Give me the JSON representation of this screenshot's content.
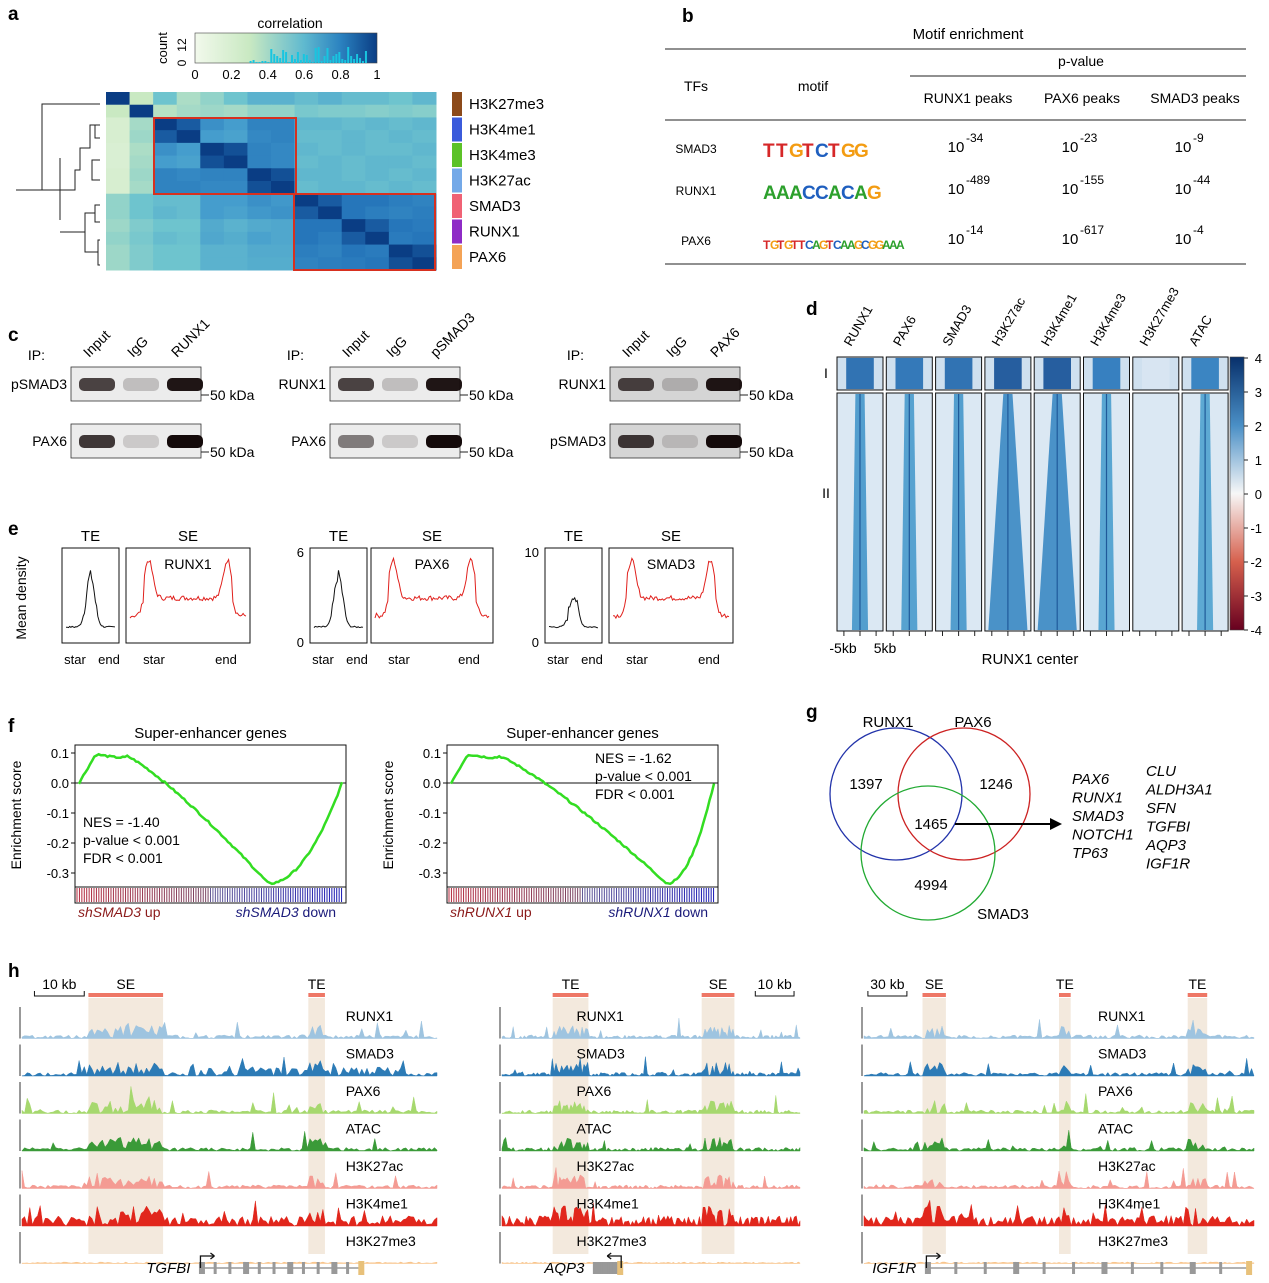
{
  "panel_labels": [
    "a",
    "b",
    "c",
    "d",
    "e",
    "f",
    "g",
    "h"
  ],
  "a": {
    "colorbar_title": "correlation",
    "colorbar_ticks": [
      "0",
      "0.2",
      "0.4",
      "0.6",
      "0.8",
      "1"
    ],
    "count_label": "count",
    "count_ticks": [
      "0",
      "12"
    ],
    "labels": [
      "H3K27me3",
      "H3K4me1",
      "H3K4me3",
      "H3K27ac",
      "SMAD3",
      "RUNX1",
      "PAX6"
    ],
    "label_colors": [
      "#8c4a1a",
      "#3b5bdb",
      "#5cc228",
      "#74a9e8",
      "#f06275",
      "#8e2bc6",
      "#f4a356"
    ],
    "matrix": [
      [
        1.0,
        0.3,
        0.55,
        0.38,
        0.45,
        0.55,
        0.62,
        0.62,
        0.58,
        0.62,
        0.58,
        0.58,
        0.55,
        0.6
      ],
      [
        0.3,
        1.0,
        0.35,
        0.4,
        0.42,
        0.4,
        0.45,
        0.45,
        0.52,
        0.5,
        0.5,
        0.48,
        0.5,
        0.48
      ],
      [
        0.2,
        0.4,
        1.0,
        0.92,
        0.75,
        0.7,
        0.8,
        0.8,
        0.6,
        0.6,
        0.58,
        0.6,
        0.58,
        0.6
      ],
      [
        0.2,
        0.42,
        0.92,
        1.0,
        0.7,
        0.68,
        0.78,
        0.8,
        0.58,
        0.58,
        0.6,
        0.58,
        0.6,
        0.58
      ],
      [
        0.18,
        0.38,
        0.75,
        0.7,
        1.0,
        0.95,
        0.8,
        0.78,
        0.6,
        0.58,
        0.6,
        0.58,
        0.58,
        0.6
      ],
      [
        0.18,
        0.4,
        0.7,
        0.68,
        0.95,
        1.0,
        0.8,
        0.78,
        0.58,
        0.6,
        0.58,
        0.6,
        0.6,
        0.58
      ],
      [
        0.2,
        0.42,
        0.8,
        0.78,
        0.8,
        0.8,
        1.0,
        0.95,
        0.6,
        0.6,
        0.58,
        0.6,
        0.58,
        0.6
      ],
      [
        0.2,
        0.4,
        0.8,
        0.8,
        0.78,
        0.78,
        0.95,
        1.0,
        0.58,
        0.6,
        0.6,
        0.58,
        0.6,
        0.58
      ],
      [
        0.45,
        0.55,
        0.58,
        0.58,
        0.7,
        0.7,
        0.75,
        0.72,
        1.0,
        0.92,
        0.85,
        0.85,
        0.82,
        0.8
      ],
      [
        0.45,
        0.55,
        0.6,
        0.58,
        0.7,
        0.68,
        0.72,
        0.74,
        0.92,
        1.0,
        0.85,
        0.82,
        0.8,
        0.82
      ],
      [
        0.42,
        0.5,
        0.55,
        0.55,
        0.65,
        0.62,
        0.65,
        0.66,
        0.85,
        0.85,
        1.0,
        0.92,
        0.85,
        0.83
      ],
      [
        0.45,
        0.52,
        0.58,
        0.56,
        0.66,
        0.64,
        0.68,
        0.66,
        0.85,
        0.82,
        0.92,
        1.0,
        0.83,
        0.85
      ],
      [
        0.42,
        0.5,
        0.55,
        0.55,
        0.62,
        0.62,
        0.65,
        0.65,
        0.82,
        0.8,
        0.85,
        0.83,
        1.0,
        0.95
      ],
      [
        0.42,
        0.5,
        0.55,
        0.55,
        0.62,
        0.62,
        0.64,
        0.64,
        0.8,
        0.82,
        0.83,
        0.85,
        0.95,
        1.0
      ]
    ]
  },
  "b": {
    "title": "Motif enrichment",
    "group_header": "p-value",
    "col_tfs": "TFs",
    "col_motif": "motif",
    "columns": [
      "RUNX1 peaks",
      "PAX6 peaks",
      "SMAD3 peaks"
    ],
    "rows": [
      {
        "tf": "SMAD3",
        "motif": "TTGTCTGG",
        "exps": [
          "-34",
          "-23",
          "-9"
        ]
      },
      {
        "tf": "RUNX1",
        "motif": "AAACCACAG",
        "exps": [
          "-489",
          "-155",
          "-44"
        ]
      },
      {
        "tf": "PAX6",
        "motif": "TGTGTTCAGTCAAGCGGAAA",
        "exps": [
          "-14",
          "-617",
          "-4"
        ]
      }
    ],
    "base": "10"
  },
  "c": {
    "blots": [
      {
        "ip": "IP:",
        "lanes": [
          "Input",
          "IgG",
          "RUNX1"
        ],
        "rows": [
          "pSMAD3",
          "PAX6"
        ],
        "mw": [
          "50 kDa",
          "50 kDa"
        ]
      },
      {
        "ip": "IP:",
        "lanes": [
          "Input",
          "IgG",
          "pSMAD3"
        ],
        "rows": [
          "RUNX1",
          "PAX6"
        ],
        "mw": [
          "50 kDa",
          "50 kDa"
        ]
      },
      {
        "ip": "IP:",
        "lanes": [
          "Input",
          "IgG",
          "PAX6"
        ],
        "rows": [
          "RUNX1",
          "pSMAD3"
        ],
        "mw": [
          "50 kDa",
          "50 kDa"
        ]
      }
    ]
  },
  "d": {
    "columns": [
      "RUNX1",
      "PAX6",
      "SMAD3",
      "H3K27ac",
      "H3K4me1",
      "H3K4me3",
      "H3K27me3",
      "ATAC"
    ],
    "cluster_labels": [
      "I",
      "II"
    ],
    "x_left": "-5kb",
    "x_right": "5kb",
    "xlabel": "RUNX1 center",
    "colorbar_ticks": [
      "4",
      "3",
      "2",
      "1",
      "0",
      "-1",
      "-2",
      "-3",
      "-4"
    ],
    "intensity": [
      0.85,
      0.8,
      0.85,
      1.0,
      1.0,
      0.75,
      0.1,
      0.7
    ]
  },
  "e": {
    "ylabel": "Mean density",
    "te_label": "TE",
    "se_label": "SE",
    "ticks_te": [
      "star",
      "end"
    ],
    "ticks_se": [
      "star",
      "end"
    ],
    "groups": [
      {
        "factor": "RUNX1",
        "ymax": "",
        "ymin": ""
      },
      {
        "factor": "PAX6",
        "ymax": "6",
        "ymin": "0"
      },
      {
        "factor": "SMAD3",
        "ymax": "10",
        "ymin": "0"
      }
    ]
  },
  "f": {
    "title": "Super-enhancer genes",
    "ylabel": "Enrichment score",
    "plots": [
      {
        "nes": "NES = -1.40",
        "pval": "p-value < 0.001",
        "fdr": "FDR < 0.001",
        "up": "shSMAD3",
        "up_suffix": " up",
        "down": "shSMAD3",
        "down_suffix": " down",
        "yticks": [
          "0.1",
          "0.0",
          "-0.1",
          "-0.2",
          "-0.3"
        ]
      },
      {
        "nes": "NES = -1.62",
        "pval": "p-value < 0.001",
        "fdr": "FDR < 0.001",
        "up": "shRUNX1",
        "up_suffix": " up",
        "down": "shRUNX1",
        "down_suffix": " down",
        "yticks": [
          "0.1",
          "0.0",
          "-0.1",
          "-0.2",
          "-0.3"
        ]
      }
    ],
    "line_color": "#33dd22"
  },
  "g": {
    "sets": [
      "RUNX1",
      "PAX6",
      "SMAD3"
    ],
    "counts": {
      "runx1_only": "1397",
      "pax6_only": "1246",
      "smad3_only": "4994",
      "all_three": "1465"
    },
    "genes_col1": [
      "PAX6",
      "RUNX1",
      "SMAD3",
      "NOTCH1",
      "TP63"
    ],
    "genes_col2": [
      "CLU",
      "ALDH3A1",
      "SFN",
      "TGFBI",
      "AQP3",
      "IGF1R"
    ],
    "colors": [
      "#2233aa",
      "#cc2222",
      "#22aa33"
    ]
  },
  "h": {
    "tracks": [
      "RUNX1",
      "SMAD3",
      "PAX6",
      "ATAC",
      "H3K27ac",
      "H3K4me1",
      "H3K27me3"
    ],
    "track_colors": [
      "#9ec4e0",
      "#2c7bb6",
      "#a6d86e",
      "#3a9a38",
      "#f49b93",
      "#e1261c",
      "#f8c48a"
    ],
    "loci": [
      {
        "gene": "TGFBI",
        "scale": "10 kb",
        "regions": [
          "SE",
          "TE"
        ]
      },
      {
        "gene": "AQP3",
        "scale": "10 kb",
        "regions": [
          "TE",
          "SE"
        ]
      },
      {
        "gene": "IGF1R",
        "scale": "30 kb",
        "regions": [
          "SE",
          "TE",
          "TE"
        ]
      }
    ]
  }
}
